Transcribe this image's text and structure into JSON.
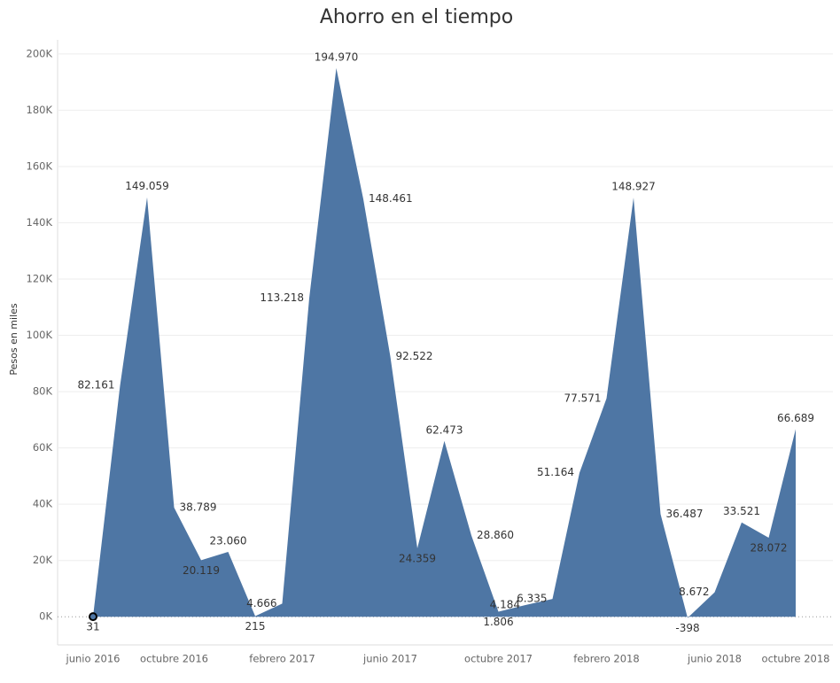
{
  "chart_data": {
    "type": "area",
    "title": "Ahorro en el tiempo",
    "y_label": "Pesos en miles",
    "categories": [
      "junio 2016",
      null,
      null,
      "octubre 2016",
      null,
      null,
      null,
      "febrero 2017",
      null,
      null,
      null,
      "junio 2017",
      null,
      null,
      null,
      "octubre 2017",
      null,
      null,
      null,
      "febrero 2018",
      null,
      null,
      null,
      "junio 2018",
      null,
      null,
      "octubre 2018"
    ],
    "values": [
      31,
      82161,
      149059,
      38789,
      20119,
      23060,
      215,
      4666,
      113218,
      194970,
      148461,
      92522,
      24359,
      62473,
      28860,
      1806,
      4184,
      6335,
      51164,
      77571,
      148927,
      36487,
      -398,
      8672,
      33521,
      28072,
      66689
    ],
    "value_labels": [
      "31",
      "82.161",
      "149.059",
      "38.789",
      "20.119",
      "23.060",
      "215",
      "4.666",
      "113.218",
      "194.970",
      "148.461",
      "92.522",
      "24.359",
      "62.473",
      "28.860",
      "1.806",
      "4.184",
      "6.335",
      "51.164",
      "77.571",
      "148.927",
      "36.487",
      "-398",
      "8.672",
      "33.521",
      "28.072",
      "66.689"
    ],
    "color": "#4e76a4",
    "ylim": [
      -10000,
      205000
    ],
    "yticks": [
      {
        "value": 0,
        "label": "0K"
      },
      {
        "value": 20000,
        "label": "20K"
      },
      {
        "value": 40000,
        "label": "40K"
      },
      {
        "value": 60000,
        "label": "60K"
      },
      {
        "value": 80000,
        "label": "80K"
      },
      {
        "value": 100000,
        "label": "100K"
      },
      {
        "value": 120000,
        "label": "120K"
      },
      {
        "value": 140000,
        "label": "140K"
      },
      {
        "value": 160000,
        "label": "160K"
      },
      {
        "value": 180000,
        "label": "180K"
      },
      {
        "value": 200000,
        "label": "200K"
      }
    ],
    "grid": true
  }
}
